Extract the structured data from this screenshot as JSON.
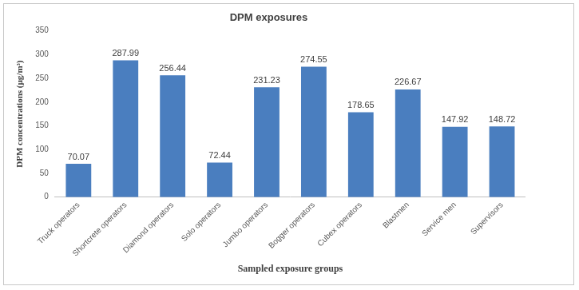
{
  "chart_data": {
    "type": "bar",
    "title": "DPM exposures",
    "x_label": "Sampled exposure groups",
    "y_label": "DPM concentrations (µg/m³)",
    "categories": [
      "Truck operators",
      "Shortcrete operators",
      "Diamond operators",
      "Solo operators",
      "Jumbo operators",
      "Bogger operators",
      "Cubex operators",
      "Blastmen",
      "Service men",
      "Supervisors"
    ],
    "values": [
      70.07,
      287.99,
      256.44,
      72.44,
      231.23,
      274.55,
      178.65,
      226.67,
      147.92,
      148.72
    ],
    "color": "#4a7ebf",
    "ylim": [
      0,
      350
    ],
    "yticks": [
      0,
      50,
      100,
      150,
      200,
      250,
      300,
      350
    ],
    "grid": false,
    "data_labels": true
  }
}
